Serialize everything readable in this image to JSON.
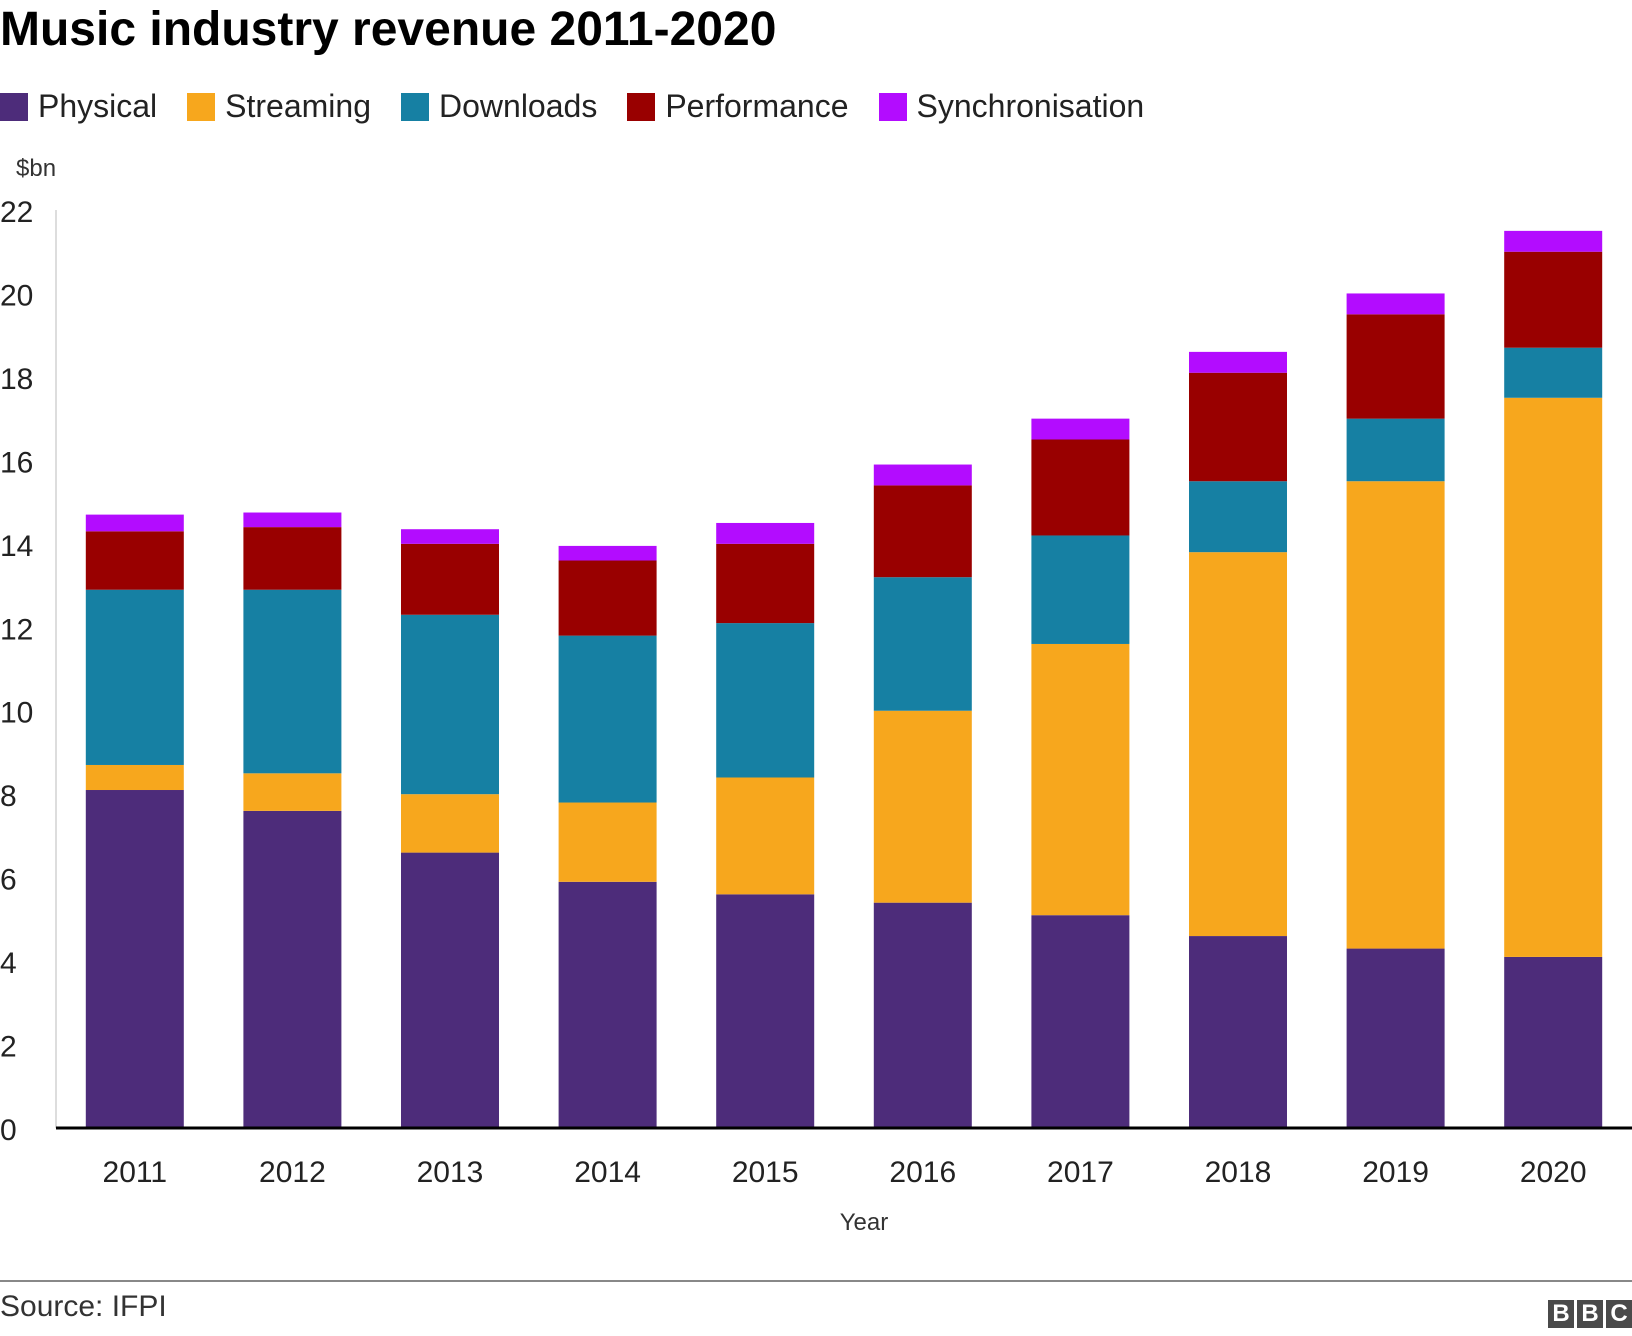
{
  "chart_data": {
    "type": "bar",
    "stacked": true,
    "title": "Music industry revenue 2011-2020",
    "xlabel": "Year",
    "ylabel": "$bn",
    "ylim": [
      0,
      22
    ],
    "yticks": [
      0,
      2,
      4,
      6,
      8,
      10,
      12,
      14,
      16,
      18,
      20,
      22
    ],
    "grid": false,
    "legend": "top",
    "categories": [
      "2011",
      "2012",
      "2013",
      "2014",
      "2015",
      "2016",
      "2017",
      "2018",
      "2019",
      "2020"
    ],
    "series": [
      {
        "name": "Physical",
        "color": "#4d2c7a",
        "values": [
          8.1,
          7.6,
          6.6,
          5.9,
          5.6,
          5.4,
          5.1,
          4.6,
          4.3,
          4.1
        ]
      },
      {
        "name": "Streaming",
        "color": "#f7a71d",
        "values": [
          0.6,
          0.9,
          1.4,
          1.9,
          2.8,
          4.6,
          6.5,
          9.2,
          11.2,
          13.4
        ]
      },
      {
        "name": "Downloads",
        "color": "#1680a3",
        "values": [
          4.2,
          4.4,
          4.3,
          4.0,
          3.7,
          3.2,
          2.6,
          1.7,
          1.5,
          1.2
        ]
      },
      {
        "name": "Performance",
        "color": "#990000",
        "values": [
          1.4,
          1.5,
          1.7,
          1.8,
          1.9,
          2.2,
          2.3,
          2.6,
          2.5,
          2.3
        ]
      },
      {
        "name": "Synchronisation",
        "color": "#b30cff",
        "values": [
          0.4,
          0.35,
          0.35,
          0.35,
          0.5,
          0.5,
          0.5,
          0.5,
          0.5,
          0.5
        ]
      }
    ]
  },
  "footer": {
    "source": "Source: IFPI",
    "logo_letters": [
      "B",
      "B",
      "C"
    ]
  }
}
